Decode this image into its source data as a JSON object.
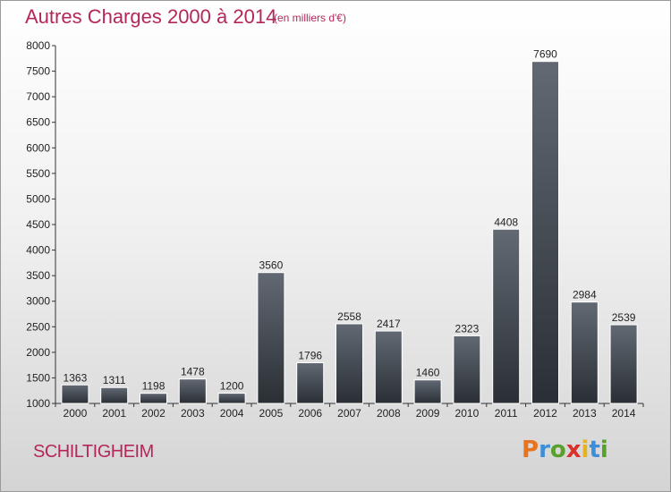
{
  "header": {
    "title": "Autres Charges 2000 à 2014",
    "subtitle": "(en milliers d'€)"
  },
  "footer": {
    "place": "SCHILTIGHEIM",
    "logo_text": "Proxiti"
  },
  "colors": {
    "title": "#b5265b",
    "bar_top": "#626973",
    "bar_bottom": "#2a2f35"
  },
  "chart_data": {
    "type": "bar",
    "title": "Autres Charges 2000 à 2014",
    "subtitle": "(en milliers d'€)",
    "xlabel": "",
    "ylabel": "",
    "ylim": [
      1000,
      8000
    ],
    "yticks": [
      1000,
      1500,
      2000,
      2500,
      3000,
      3500,
      4000,
      4500,
      5000,
      5500,
      6000,
      6500,
      7000,
      7500,
      8000
    ],
    "grid": false,
    "categories": [
      "2000",
      "2001",
      "2002",
      "2003",
      "2004",
      "2005",
      "2006",
      "2007",
      "2008",
      "2009",
      "2010",
      "2011",
      "2012",
      "2013",
      "2014"
    ],
    "values": [
      1363,
      1311,
      1198,
      1478,
      1200,
      3560,
      1796,
      2558,
      2417,
      1460,
      2323,
      4408,
      7690,
      2984,
      2539
    ]
  }
}
